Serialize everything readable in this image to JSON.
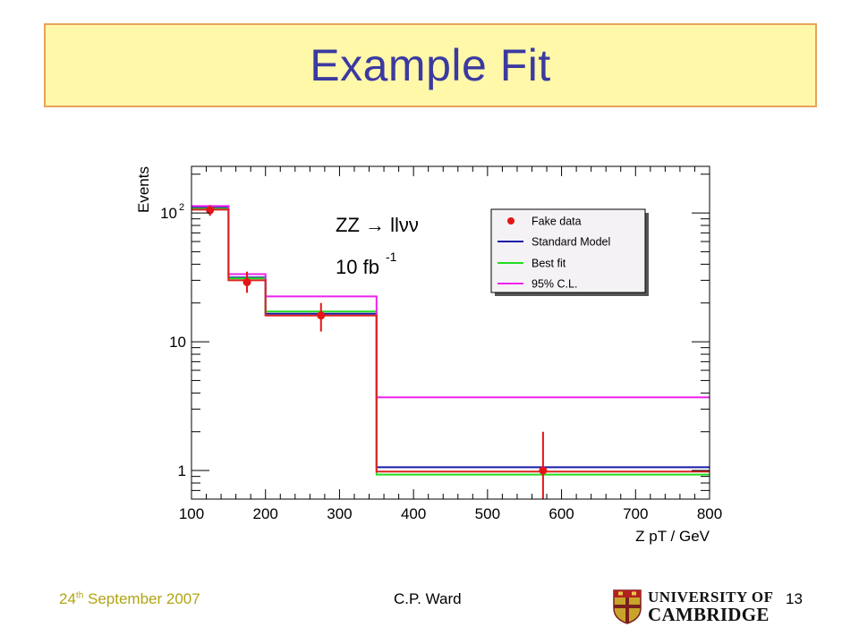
{
  "slide": {
    "title": "Example Fit",
    "footer_date_day": "24",
    "footer_date_sup": "th",
    "footer_date_rest": " September 2007",
    "footer_author": "C.P. Ward",
    "footer_page": "13",
    "logo_line1": "UNIVERSITY OF",
    "logo_line2": "CAMBRIDGE"
  },
  "chart_data": {
    "type": "line",
    "ylabel": "Events",
    "xlabel": "Z pT / GeV",
    "xlim": [
      100,
      800
    ],
    "ylim": [
      0.6,
      230
    ],
    "yscale": "log",
    "x_ticks": [
      100,
      200,
      300,
      400,
      500,
      600,
      700,
      800
    ],
    "x_tick_labels": [
      "100",
      "200",
      "300",
      "400",
      "500",
      "600",
      "700",
      "800"
    ],
    "y_tick_labels": [
      {
        "value": 100,
        "base": "10",
        "exp": "2"
      },
      {
        "value": 10,
        "base": "10",
        "exp": ""
      },
      {
        "value": 1,
        "base": "1",
        "exp": ""
      }
    ],
    "annotations": [
      {
        "text": "ZZ → llνν",
        "sup": ""
      },
      {
        "text": "10 fb",
        "sup": "-1"
      }
    ],
    "bin_edges": [
      100,
      150,
      200,
      350,
      800
    ],
    "series": [
      {
        "name": "Standard Model",
        "kind": "step",
        "color": "#1a1aa8",
        "values": [
          110,
          31.5,
          16.5,
          1.06
        ]
      },
      {
        "name": "Best fit",
        "kind": "step",
        "color": "#22dd22",
        "values": [
          108,
          31,
          17.2,
          0.93
        ]
      },
      {
        "name": "95% C.L.",
        "kind": "step",
        "color": "#ee22ee",
        "values": [
          113,
          33.5,
          22.5,
          3.7
        ]
      },
      {
        "name": "",
        "kind": "step",
        "color": "#dd2222",
        "values": [
          106,
          30,
          16,
          0.98
        ]
      }
    ],
    "points": {
      "name": "Fake data",
      "color": "#e51515",
      "x": [
        125,
        175,
        275,
        575
      ],
      "y": [
        105,
        29,
        16,
        1.0
      ],
      "yerr_low": [
        10,
        5,
        4,
        1.0
      ],
      "yerr_high": [
        10,
        6,
        4,
        1.0
      ]
    },
    "legend": {
      "position": "top-right",
      "entries": [
        {
          "label": "Fake data",
          "type": "marker",
          "color": "#e51515"
        },
        {
          "label": "Standard Model",
          "type": "line",
          "color": "#1a1aa8"
        },
        {
          "label": "Best fit",
          "type": "line",
          "color": "#22dd22"
        },
        {
          "label": "95% C.L.",
          "type": "line",
          "color": "#ee22ee"
        }
      ]
    }
  }
}
